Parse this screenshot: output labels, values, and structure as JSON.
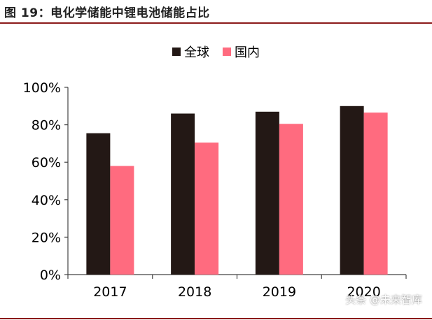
{
  "figure": {
    "title": "图 19：电化学储能中锂电池储能占比",
    "watermark": "头条 @未来智库"
  },
  "colors": {
    "global": "#231815",
    "domestic": "#ff6b7f",
    "accent_rule": "#8b1a1a",
    "axis": "#444444",
    "text": "#000000"
  },
  "chart_data": {
    "type": "bar",
    "title": "",
    "xlabel": "",
    "ylabel": "",
    "categories": [
      "2017",
      "2018",
      "2019",
      "2020"
    ],
    "series": [
      {
        "name": "全球",
        "values": [
          75.5,
          86,
          87,
          90
        ]
      },
      {
        "name": "国内",
        "values": [
          58,
          70.5,
          80.5,
          86.5
        ]
      }
    ],
    "ylim": [
      0,
      100
    ],
    "yticks": [
      "0%",
      "20%",
      "40%",
      "60%",
      "80%",
      "100%"
    ],
    "ytick_values": [
      0,
      20,
      40,
      60,
      80,
      100
    ],
    "legend_position": "top-center",
    "grid": false
  }
}
